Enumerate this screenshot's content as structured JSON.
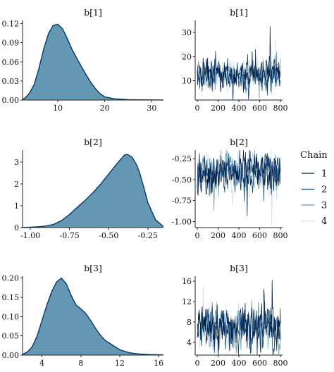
{
  "chart_data": [
    {
      "type": "area",
      "title": "b[1]",
      "xlim": [
        2.5,
        32.5
      ],
      "ylim": [
        0,
        0.125
      ],
      "xticks": [
        10,
        20,
        30
      ],
      "xtick_labels": [
        "10",
        "20",
        "30"
      ],
      "yticks": [
        0,
        0.03,
        0.06,
        0.09,
        0.12
      ],
      "ytick_labels": [
        "0.00",
        "0.03",
        "0.06",
        "0.09",
        "0.12"
      ],
      "x": [
        2.5,
        3,
        4,
        5,
        6,
        7,
        8,
        9,
        10,
        11,
        12,
        13,
        14,
        15,
        16,
        17,
        18,
        19,
        20,
        22,
        25,
        28,
        32.5
      ],
      "y": [
        0.001,
        0.003,
        0.011,
        0.025,
        0.05,
        0.08,
        0.104,
        0.117,
        0.119,
        0.112,
        0.097,
        0.08,
        0.066,
        0.053,
        0.04,
        0.028,
        0.018,
        0.01,
        0.005,
        0.002,
        0.0006,
        0.0003,
        0.0001
      ]
    },
    {
      "type": "line",
      "title": "b[1]",
      "xlim": [
        -20,
        820
      ],
      "ylim": [
        2,
        35
      ],
      "xticks": [
        0,
        200,
        400,
        600,
        800
      ],
      "xtick_labels": [
        "0",
        "200",
        "400",
        "600",
        "800"
      ],
      "yticks": [
        10,
        20,
        30
      ],
      "ytick_labels": [
        "10",
        "20",
        "30"
      ],
      "n_iter": 800,
      "center": 12.5,
      "spread": 3.5,
      "spikes": [
        [
          700,
          32.5
        ],
        [
          560,
          23
        ],
        [
          755,
          27
        ]
      ]
    },
    {
      "type": "area",
      "title": "b[2]",
      "xlim": [
        -1.05,
        -0.15
      ],
      "ylim": [
        0,
        3.55
      ],
      "xticks": [
        -1.0,
        -0.75,
        -0.5,
        -0.25
      ],
      "xtick_labels": [
        "-1.00",
        "-0.75",
        "-0.50",
        "-0.25"
      ],
      "yticks": [
        0,
        1,
        2,
        3
      ],
      "ytick_labels": [
        "0",
        "1",
        "2",
        "3"
      ],
      "x": [
        -1.05,
        -1.0,
        -0.95,
        -0.9,
        -0.85,
        -0.8,
        -0.75,
        -0.7,
        -0.65,
        -0.6,
        -0.55,
        -0.5,
        -0.45,
        -0.42,
        -0.4,
        -0.38,
        -0.35,
        -0.32,
        -0.3,
        -0.27,
        -0.25,
        -0.2,
        -0.15
      ],
      "y": [
        0.01,
        0.02,
        0.04,
        0.07,
        0.15,
        0.33,
        0.6,
        0.93,
        1.25,
        1.6,
        2.0,
        2.45,
        2.9,
        3.15,
        3.32,
        3.35,
        3.22,
        2.85,
        2.45,
        1.7,
        1.15,
        0.35,
        0.05
      ]
    },
    {
      "type": "line",
      "title": "b[2]",
      "xlim": [
        -20,
        820
      ],
      "ylim": [
        -1.07,
        -0.15
      ],
      "xticks": [
        0,
        200,
        400,
        600,
        800
      ],
      "xtick_labels": [
        "0",
        "200",
        "400",
        "600",
        "800"
      ],
      "yticks": [
        -1.0,
        -0.75,
        -0.5,
        -0.25
      ],
      "ytick_labels": [
        "-1.00",
        "-0.75",
        "-0.50",
        "-0.25"
      ],
      "n_iter": 800,
      "center": -0.42,
      "spread": 0.13,
      "spikes": [
        [
          715,
          -1.03
        ],
        [
          480,
          -0.93
        ],
        [
          130,
          -0.88
        ]
      ]
    },
    {
      "type": "area",
      "title": "b[3]",
      "xlim": [
        2,
        16.5
      ],
      "ylim": [
        0,
        0.205
      ],
      "xticks": [
        4,
        8,
        12,
        16
      ],
      "xtick_labels": [
        "4",
        "8",
        "12",
        "16"
      ],
      "yticks": [
        0,
        0.05,
        0.1,
        0.15,
        0.2
      ],
      "ytick_labels": [
        "0.00",
        "0.05",
        "0.10",
        "0.15",
        "0.20"
      ],
      "x": [
        2,
        2.5,
        3,
        3.5,
        4,
        4.5,
        5,
        5.5,
        6,
        6.5,
        7,
        7.5,
        8,
        8.5,
        9,
        9.5,
        10,
        10.5,
        11,
        11.5,
        12,
        13,
        14,
        15,
        16.5
      ],
      "y": [
        0.002,
        0.008,
        0.022,
        0.05,
        0.09,
        0.13,
        0.165,
        0.19,
        0.2,
        0.185,
        0.155,
        0.13,
        0.12,
        0.108,
        0.09,
        0.07,
        0.052,
        0.038,
        0.03,
        0.022,
        0.014,
        0.006,
        0.003,
        0.0015,
        0.0005
      ]
    },
    {
      "type": "line",
      "title": "b[3]",
      "xlim": [
        -20,
        820
      ],
      "ylim": [
        1.5,
        17
      ],
      "xticks": [
        0,
        200,
        400,
        600,
        800
      ],
      "xtick_labels": [
        "0",
        "200",
        "400",
        "600",
        "800"
      ],
      "yticks": [
        4,
        8,
        12,
        16
      ],
      "ytick_labels": [
        "4",
        "8",
        "12",
        "16"
      ],
      "n_iter": 800,
      "center": 7,
      "spread": 2.2,
      "spikes": [
        [
          720,
          16.2
        ],
        [
          430,
          15
        ],
        [
          640,
          14.5
        ],
        [
          55,
          15
        ]
      ]
    }
  ],
  "legend": {
    "title": "Chain",
    "items": [
      {
        "label": "1",
        "color": "#011f4b"
      },
      {
        "label": "2",
        "color": "#03396c"
      },
      {
        "label": "3",
        "color": "#6497b1"
      },
      {
        "label": "4",
        "color": "#d1e1ec"
      }
    ]
  },
  "colors": {
    "density_fill": "#6497b1",
    "density_line": "#03396c"
  }
}
